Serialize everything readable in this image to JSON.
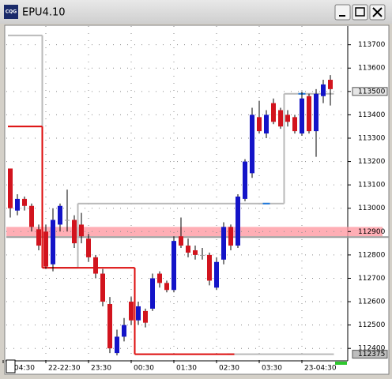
{
  "window": {
    "title": "EPU4.10",
    "icon": "CQG"
  },
  "chart_data": {
    "type": "candlestick",
    "categories": [
      "04:30",
      null,
      null,
      null,
      null,
      "22-22:30",
      null,
      null,
      null,
      null,
      null,
      "23:30",
      null,
      null,
      null,
      null,
      null,
      "00:30",
      null,
      null,
      null,
      null,
      null,
      "01:30",
      null,
      null,
      null,
      null,
      null,
      "02:30",
      null,
      null,
      null,
      null,
      null,
      "03:30",
      null,
      null,
      null,
      null,
      null,
      "23-04:30",
      null,
      null,
      null,
      null
    ],
    "open": [
      113170,
      112990,
      113040,
      113010,
      112910,
      112900,
      112760,
      112930,
      112950,
      112950,
      112930,
      112870,
      112790,
      112720,
      112590,
      112380,
      112450,
      112600,
      112520,
      112560,
      112570,
      112720,
      112680,
      112650,
      112880,
      112840,
      112820,
      112800,
      112800,
      112660,
      112780,
      112920,
      112840,
      113040,
      113150,
      113390,
      113320,
      113450,
      113420,
      113400,
      113390,
      113320,
      113480,
      113330,
      113480,
      113550
    ],
    "high": [
      113170,
      113060,
      113050,
      113020,
      112930,
      112930,
      113000,
      113020,
      113080,
      112970,
      112980,
      112890,
      112800,
      112740,
      112620,
      112480,
      112530,
      112620,
      112600,
      112570,
      112720,
      112730,
      112690,
      112880,
      112960,
      112870,
      112840,
      112830,
      112810,
      112790,
      112940,
      112930,
      113060,
      113210,
      113430,
      113460,
      113420,
      113470,
      113430,
      113420,
      113400,
      113500,
      113490,
      113510,
      113550,
      113570
    ],
    "low": [
      112960,
      112970,
      112990,
      112900,
      112820,
      112740,
      112730,
      112900,
      112900,
      112830,
      112850,
      112770,
      112700,
      112580,
      112380,
      112370,
      112430,
      112500,
      112500,
      112490,
      112560,
      112660,
      112640,
      112640,
      112830,
      112790,
      112780,
      112780,
      112670,
      112650,
      112760,
      112820,
      112830,
      113030,
      113130,
      113320,
      113300,
      113360,
      113340,
      113350,
      113320,
      113310,
      113320,
      113220,
      113450,
      113440
    ],
    "close": [
      113000,
      113040,
      113010,
      112920,
      112840,
      112750,
      112950,
      113010,
      112950,
      112850,
      112880,
      112790,
      112720,
      112600,
      112400,
      112450,
      112500,
      112520,
      112580,
      112510,
      112700,
      112680,
      112650,
      112860,
      112840,
      112810,
      112800,
      112800,
      112690,
      112770,
      112920,
      112840,
      113050,
      113200,
      113400,
      113330,
      113400,
      113370,
      113350,
      113370,
      113330,
      113470,
      113330,
      113490,
      113530,
      113510
    ],
    "up_color": "#1414c8",
    "down_color": "#d2141e",
    "flat_color": "#9a9a9a",
    "lines": [
      {
        "color": "#b9b9b9",
        "values": [
          113740,
          113740,
          113740,
          113740,
          113740,
          112745,
          112745,
          112745,
          112745,
          112745,
          113020,
          113020,
          113020,
          113020,
          113020,
          113020,
          113020,
          113020,
          113020,
          113020,
          113020,
          113020,
          113020,
          113020,
          113020,
          113020,
          113020,
          113020,
          113020,
          113020,
          113020,
          113020,
          113020,
          113020,
          113020,
          113020,
          113020,
          113020,
          113020,
          113490,
          113490,
          113490,
          113490,
          113490,
          113490,
          113490
        ]
      },
      {
        "color": "#b9b9b9",
        "values": [
          null,
          null,
          null,
          null,
          null,
          null,
          null,
          null,
          null,
          null,
          null,
          null,
          null,
          null,
          null,
          null,
          null,
          null,
          null,
          null,
          null,
          null,
          null,
          null,
          null,
          null,
          null,
          null,
          null,
          null,
          null,
          112375,
          112375,
          112375,
          112375,
          112375,
          112375,
          112375,
          112375,
          112375,
          112375,
          112375,
          112375,
          112375,
          112375,
          112375
        ]
      },
      {
        "color": "#dc0a0a",
        "values": [
          113350,
          113350,
          113350,
          113350,
          113350,
          112745,
          112745,
          112745,
          112745,
          112745,
          112745,
          112745,
          112745,
          112745,
          112745,
          112745,
          112745,
          112745,
          112375,
          112375,
          112375,
          112375,
          112375,
          112375,
          112375,
          112375,
          112375,
          112375,
          112375,
          112375,
          112375,
          112375,
          null,
          null,
          null,
          null,
          null,
          null,
          null,
          null,
          null,
          null,
          null,
          null,
          null,
          null
        ]
      },
      {
        "color": "#1e78dc",
        "values": [
          null,
          null,
          null,
          null,
          null,
          null,
          null,
          null,
          null,
          null,
          null,
          null,
          null,
          null,
          null,
          null,
          null,
          null,
          null,
          null,
          null,
          null,
          null,
          null,
          null,
          null,
          null,
          null,
          null,
          null,
          null,
          null,
          null,
          null,
          null,
          null,
          113020,
          null,
          null,
          null,
          null,
          113490,
          null,
          null,
          null,
          null
        ]
      }
    ],
    "band": {
      "from": 112880,
      "to": 112920,
      "color": "#ff9aa2"
    },
    "ylim": [
      112350,
      113780
    ],
    "yticks": [
      112400,
      112500,
      112600,
      112700,
      112800,
      112900,
      113000,
      113100,
      113200,
      113300,
      113400,
      113500,
      113600,
      113700
    ],
    "price_markers": [
      113500,
      112375
    ],
    "grid": true
  }
}
